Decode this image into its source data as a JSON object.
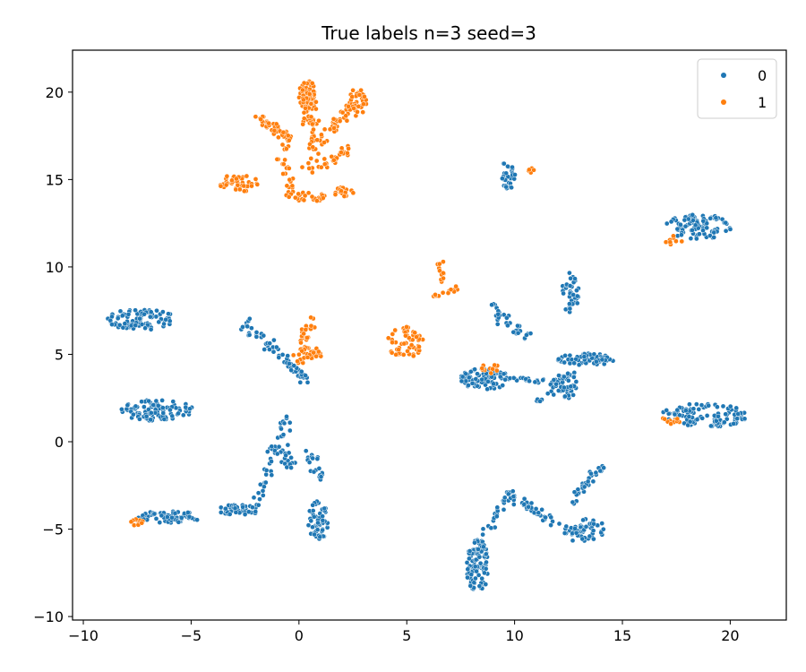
{
  "chart_data": {
    "type": "scatter",
    "title": "True labels n=3 seed=3",
    "xlabel": "",
    "ylabel": "",
    "xlim": [
      -10.5,
      22.6
    ],
    "ylim": [
      -10.2,
      22.4
    ],
    "xticks": [
      -10,
      -5,
      0,
      5,
      10,
      15,
      20
    ],
    "yticks": [
      -10,
      -5,
      0,
      5,
      10,
      15,
      20
    ],
    "legend": {
      "position": "top-right",
      "entries": [
        "0",
        "1"
      ]
    },
    "grid": false,
    "series": [
      {
        "name": "0",
        "color": "#1f77b4",
        "clusters": [
          {
            "type": "blob",
            "cx": -7.3,
            "cy": 7.0,
            "rx": 1.6,
            "ry": 0.6,
            "n": 90
          },
          {
            "type": "blob",
            "cx": -6.6,
            "cy": 1.8,
            "rx": 1.7,
            "ry": 0.6,
            "n": 100
          },
          {
            "type": "blob",
            "cx": -6.0,
            "cy": -4.3,
            "rx": 1.5,
            "ry": 0.35,
            "n": 60
          },
          {
            "type": "blob",
            "cx": -2.8,
            "cy": -3.9,
            "rx": 1.0,
            "ry": 0.3,
            "n": 40
          },
          {
            "type": "line",
            "from": [
              -2.5,
              6.8
            ],
            "to": [
              0.4,
              3.5
            ],
            "jitter": 0.3,
            "n": 60
          },
          {
            "type": "line",
            "from": [
              -2.0,
              -3.8
            ],
            "to": [
              -0.5,
              1.5
            ],
            "jitter": 0.25,
            "n": 40
          },
          {
            "type": "line",
            "from": [
              -0.8,
              -0.3
            ],
            "to": [
              -0.3,
              -1.4
            ],
            "jitter": 0.3,
            "n": 20
          },
          {
            "type": "line",
            "from": [
              0.5,
              -0.6
            ],
            "to": [
              1.1,
              -2.5
            ],
            "jitter": 0.2,
            "n": 20
          },
          {
            "type": "blob",
            "cx": 0.9,
            "cy": -4.5,
            "rx": 0.5,
            "ry": 1.1,
            "n": 60
          },
          {
            "type": "blob",
            "cx": 9.7,
            "cy": 15.3,
            "rx": 0.35,
            "ry": 0.9,
            "n": 30
          },
          {
            "type": "blob",
            "cx": 18.5,
            "cy": 12.3,
            "rx": 1.6,
            "ry": 0.7,
            "n": 90
          },
          {
            "type": "blob",
            "cx": 12.6,
            "cy": 8.5,
            "rx": 0.4,
            "ry": 1.2,
            "n": 35
          },
          {
            "type": "line",
            "from": [
              9.0,
              7.8
            ],
            "to": [
              10.6,
              5.8
            ],
            "jitter": 0.3,
            "n": 35
          },
          {
            "type": "blob",
            "cx": 8.6,
            "cy": 3.6,
            "rx": 1.2,
            "ry": 0.6,
            "n": 80
          },
          {
            "type": "line",
            "from": [
              9.5,
              3.6
            ],
            "to": [
              12.0,
              3.4
            ],
            "jitter": 0.2,
            "n": 30
          },
          {
            "type": "line",
            "from": [
              11.0,
              2.2
            ],
            "to": [
              12.6,
              4.0
            ],
            "jitter": 0.2,
            "n": 25
          },
          {
            "type": "blob",
            "cx": 13.3,
            "cy": 4.7,
            "rx": 1.3,
            "ry": 0.35,
            "n": 60
          },
          {
            "type": "blob",
            "cx": 12.4,
            "cy": 3.3,
            "rx": 0.5,
            "ry": 0.9,
            "n": 35
          },
          {
            "type": "blob",
            "cx": 18.8,
            "cy": 1.5,
            "rx": 2.0,
            "ry": 0.7,
            "n": 110
          },
          {
            "type": "blob",
            "cx": 8.3,
            "cy": -7.1,
            "rx": 0.55,
            "ry": 1.5,
            "n": 110
          },
          {
            "type": "line",
            "from": [
              8.5,
              -5.5
            ],
            "to": [
              9.9,
              -2.8
            ],
            "jitter": 0.3,
            "n": 30
          },
          {
            "type": "line",
            "from": [
              10.0,
              -3.2
            ],
            "to": [
              13.0,
              -5.5
            ],
            "jitter": 0.3,
            "n": 50
          },
          {
            "type": "blob",
            "cx": 13.4,
            "cy": -5.0,
            "rx": 0.8,
            "ry": 0.6,
            "n": 40
          },
          {
            "type": "line",
            "from": [
              12.6,
              -3.5
            ],
            "to": [
              14.0,
              -1.4
            ],
            "jitter": 0.25,
            "n": 30
          }
        ]
      },
      {
        "name": "1",
        "color": "#ff7f0e",
        "clusters": [
          {
            "type": "blob",
            "cx": 0.4,
            "cy": 19.8,
            "rx": 0.4,
            "ry": 0.9,
            "n": 60
          },
          {
            "type": "line",
            "from": [
              0.5,
              20.0
            ],
            "to": [
              0.6,
              15.6
            ],
            "jitter": 0.35,
            "n": 60
          },
          {
            "type": "line",
            "from": [
              -2.1,
              18.6
            ],
            "to": [
              -0.3,
              17.3
            ],
            "jitter": 0.3,
            "n": 40
          },
          {
            "type": "line",
            "from": [
              1.0,
              17.0
            ],
            "to": [
              2.6,
              19.7
            ],
            "jitter": 0.3,
            "n": 45
          },
          {
            "type": "blob",
            "cx": 2.7,
            "cy": 19.4,
            "rx": 0.45,
            "ry": 0.8,
            "n": 35
          },
          {
            "type": "line",
            "from": [
              1.0,
              15.7
            ],
            "to": [
              2.4,
              16.8
            ],
            "jitter": 0.25,
            "n": 25
          },
          {
            "type": "line",
            "from": [
              -0.8,
              17.6
            ],
            "to": [
              -0.4,
              14.0
            ],
            "jitter": 0.3,
            "n": 30
          },
          {
            "type": "blob",
            "cx": -2.8,
            "cy": 14.8,
            "rx": 0.9,
            "ry": 0.5,
            "n": 45
          },
          {
            "type": "blob",
            "cx": 0.5,
            "cy": 14.0,
            "rx": 0.7,
            "ry": 0.3,
            "n": 25
          },
          {
            "type": "blob",
            "cx": 2.1,
            "cy": 14.3,
            "rx": 0.5,
            "ry": 0.3,
            "n": 20
          },
          {
            "type": "line",
            "from": [
              0.0,
              4.5
            ],
            "to": [
              0.5,
              7.0
            ],
            "jitter": 0.3,
            "n": 35
          },
          {
            "type": "blob",
            "cx": 0.6,
            "cy": 5.1,
            "rx": 0.55,
            "ry": 0.35,
            "n": 20
          },
          {
            "type": "blob",
            "cx": 4.9,
            "cy": 5.7,
            "rx": 0.9,
            "ry": 0.9,
            "n": 55
          },
          {
            "type": "line",
            "from": [
              6.3,
              8.3
            ],
            "to": [
              7.4,
              8.7
            ],
            "jitter": 0.15,
            "n": 15
          },
          {
            "type": "blob",
            "cx": 6.6,
            "cy": 9.8,
            "rx": 0.2,
            "ry": 0.7,
            "n": 12
          },
          {
            "type": "blob",
            "cx": 17.4,
            "cy": 11.5,
            "rx": 0.4,
            "ry": 0.3,
            "n": 10
          },
          {
            "type": "blob",
            "cx": 17.2,
            "cy": 1.2,
            "rx": 0.6,
            "ry": 0.2,
            "n": 10
          },
          {
            "type": "blob",
            "cx": -7.5,
            "cy": -4.6,
            "rx": 0.4,
            "ry": 0.2,
            "n": 10
          },
          {
            "type": "blob",
            "cx": 8.7,
            "cy": 4.2,
            "rx": 0.6,
            "ry": 0.3,
            "n": 12
          },
          {
            "type": "blob",
            "cx": 10.9,
            "cy": 15.5,
            "rx": 0.3,
            "ry": 0.2,
            "n": 5
          }
        ]
      }
    ]
  }
}
